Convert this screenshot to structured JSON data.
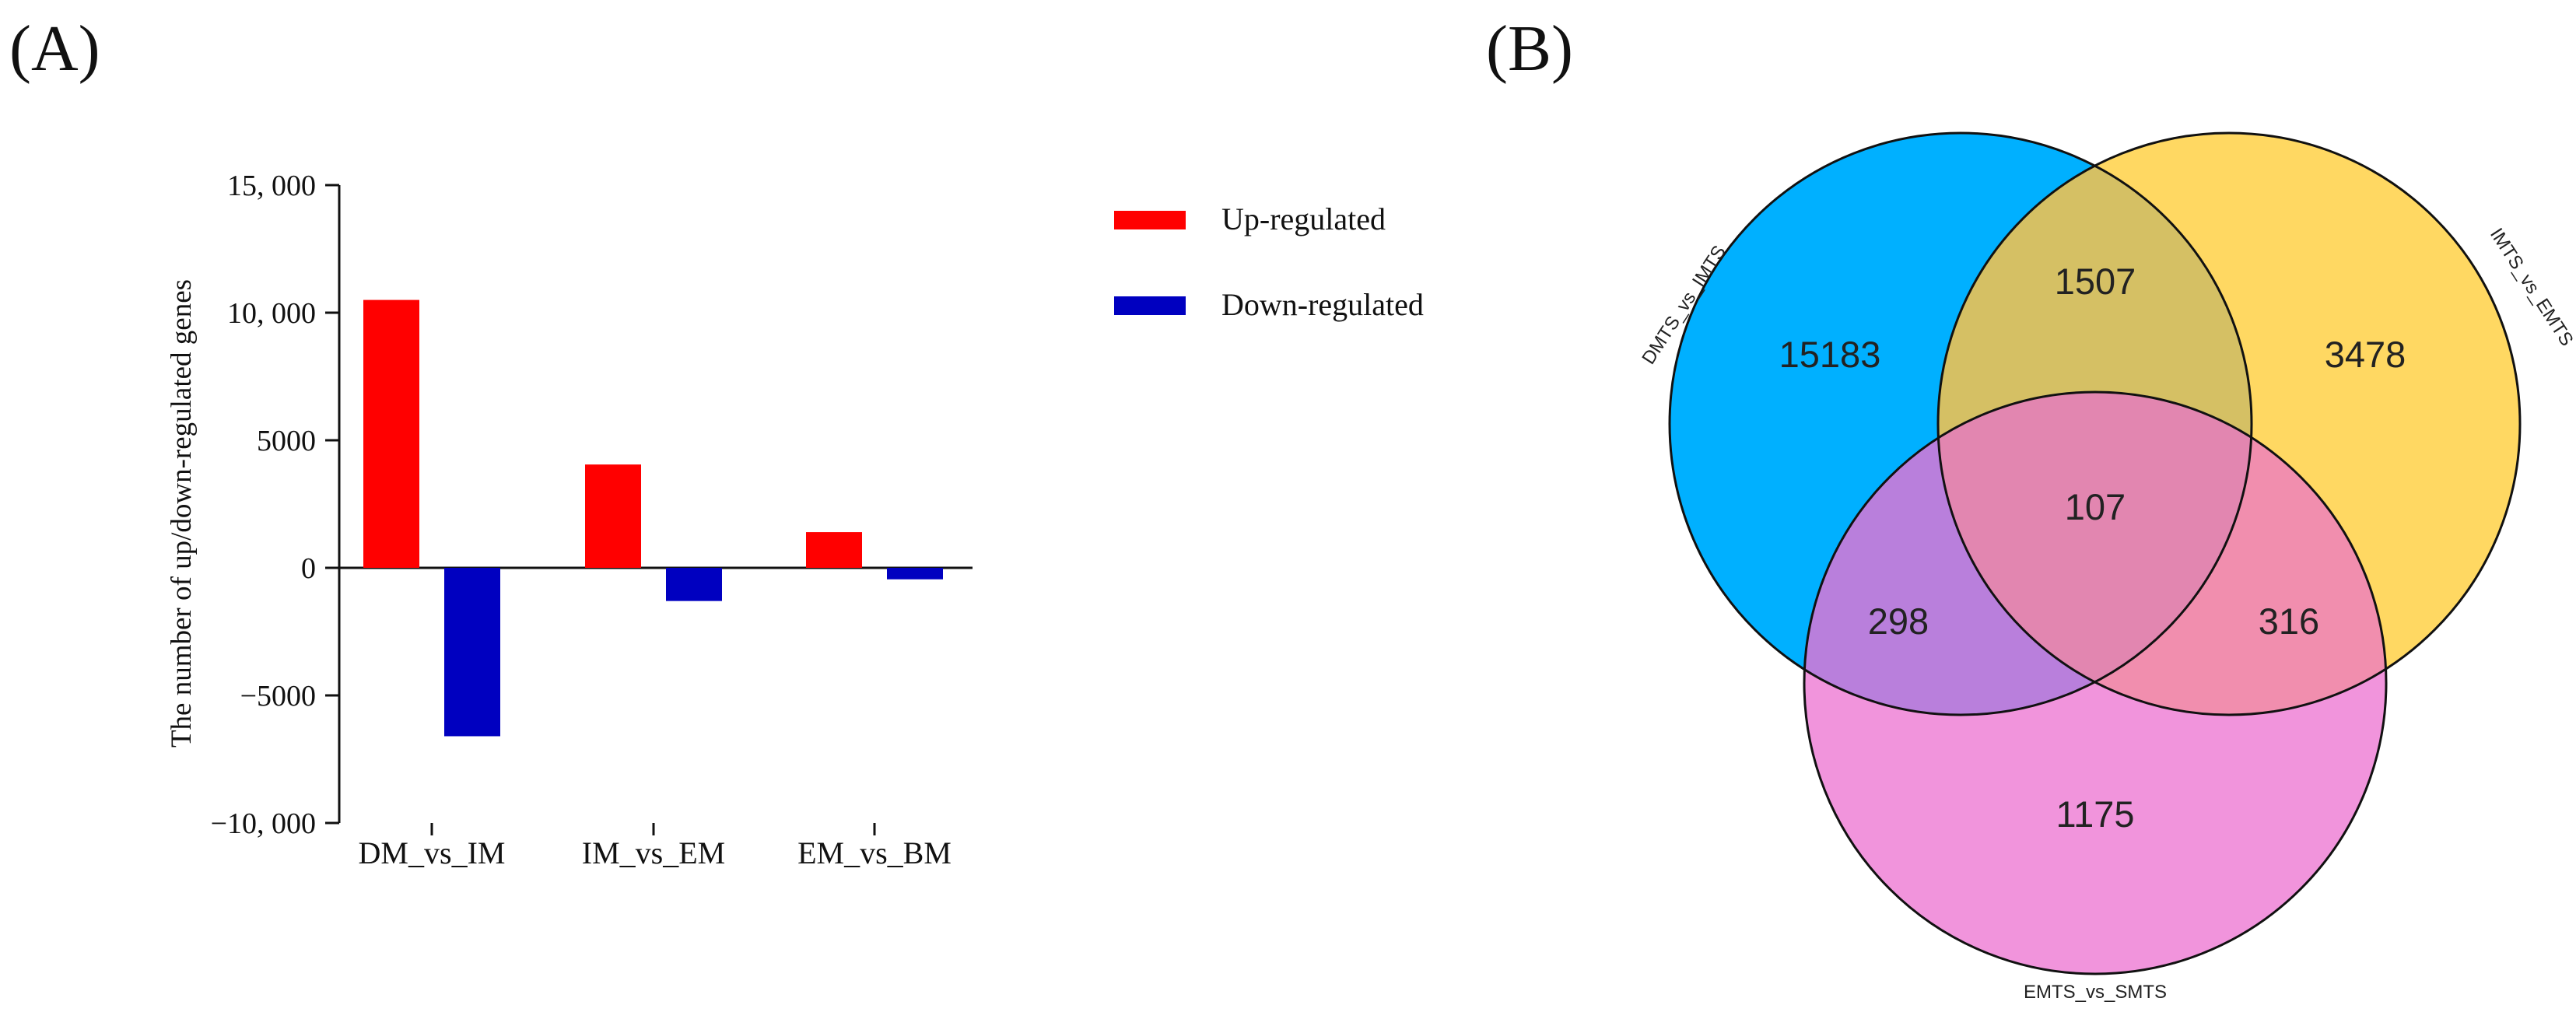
{
  "panels": {
    "a_label": "(A)",
    "b_label": "(B)"
  },
  "chart_data": [
    {
      "type": "bar",
      "title": "",
      "ylabel": "The number of up/down-regulated genes",
      "xlabel": "",
      "categories": [
        "DM_vs_IM",
        "IM_vs_EM",
        "EM_vs_BM"
      ],
      "series": [
        {
          "name": "Up-regulated",
          "color": "#ff0000",
          "values": [
            10500,
            4050,
            1400
          ]
        },
        {
          "name": "Down-regulated",
          "color": "#0000c0",
          "values": [
            -6600,
            -1300,
            -450
          ]
        }
      ],
      "ylim": [
        -10000,
        15000
      ],
      "yticks": [
        15000,
        10000,
        5000,
        0,
        -5000,
        -10000
      ],
      "ytick_labels": [
        "15, 000",
        "10, 000",
        "5000",
        "0",
        "−5000",
        "−10, 000"
      ],
      "legend": "top-right",
      "grid": false
    },
    {
      "type": "venn",
      "sets": [
        {
          "name": "DMTS_vs_IMTS",
          "color": "#00b0ff"
        },
        {
          "name": "IMTS_vs_EMTS",
          "color": "#ffd862"
        },
        {
          "name": "EMTS_vs_SMTS",
          "color": "#f194dc"
        }
      ],
      "regions": {
        "only_dmts": "15183",
        "only_imts": "3478",
        "only_emts": "1175",
        "dmts_imts": "1507",
        "dmts_emts": "298",
        "imts_emts": "316",
        "all": "107"
      }
    }
  ]
}
